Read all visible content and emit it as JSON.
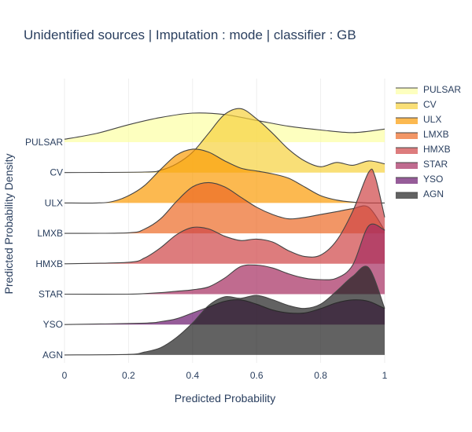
{
  "chart_data": {
    "type": "area",
    "subtype": "ridgeline",
    "title": "Unidentified sources | Imputation : mode | classifier : GB",
    "xlabel": "Predicted Probability",
    "ylabel": "Predicted Probability Density",
    "xlim": [
      0,
      1
    ],
    "x_ticks": [
      "0",
      "0.2",
      "0.4",
      "0.6",
      "0.8",
      "1"
    ],
    "grid": "vertical",
    "legend_position": "right",
    "series": [
      {
        "name": "PULSAR",
        "color": "#fcffa4",
        "x": [
          0,
          0.1,
          0.2,
          0.3,
          0.4,
          0.5,
          0.6,
          0.7,
          0.8,
          0.9,
          1.0
        ],
        "y": [
          0.1,
          0.3,
          0.6,
          0.85,
          1.0,
          0.95,
          0.75,
          0.55,
          0.42,
          0.33,
          0.45
        ]
      },
      {
        "name": "CV",
        "color": "#f7d13d",
        "x": [
          0,
          0.25,
          0.3,
          0.35,
          0.4,
          0.45,
          0.5,
          0.55,
          0.6,
          0.65,
          0.7,
          0.75,
          0.8,
          0.85,
          0.9,
          0.95,
          1.0
        ],
        "y": [
          0.0,
          0.02,
          0.08,
          0.3,
          0.7,
          1.35,
          2.0,
          2.2,
          1.85,
          1.35,
          0.8,
          0.4,
          0.2,
          0.35,
          0.25,
          0.4,
          0.3
        ]
      },
      {
        "name": "ULX",
        "color": "#fb9b06",
        "x": [
          0,
          0.1,
          0.15,
          0.2,
          0.25,
          0.3,
          0.35,
          0.4,
          0.45,
          0.5,
          0.55,
          0.6,
          0.65,
          0.7,
          0.75,
          0.8,
          0.85,
          0.9,
          0.95,
          1.0
        ],
        "y": [
          0.0,
          0.0,
          0.05,
          0.25,
          0.6,
          1.15,
          1.65,
          1.85,
          1.75,
          1.45,
          1.2,
          1.1,
          1.0,
          0.85,
          0.55,
          0.25,
          0.1,
          0.03,
          0.0,
          0.0
        ]
      },
      {
        "name": "LMXB",
        "color": "#ed6925",
        "x": [
          0,
          0.2,
          0.25,
          0.3,
          0.35,
          0.4,
          0.45,
          0.5,
          0.55,
          0.6,
          0.65,
          0.7,
          0.75,
          0.8,
          0.85,
          0.9,
          0.95,
          1.0
        ],
        "y": [
          0.0,
          0.02,
          0.15,
          0.5,
          1.1,
          1.6,
          1.75,
          1.6,
          1.25,
          0.9,
          0.65,
          0.5,
          0.55,
          0.65,
          0.75,
          0.85,
          0.9,
          0.1
        ]
      },
      {
        "name": "HMXB",
        "color": "#cf4446",
        "x": [
          0,
          0.2,
          0.25,
          0.3,
          0.35,
          0.4,
          0.45,
          0.5,
          0.55,
          0.6,
          0.65,
          0.7,
          0.75,
          0.8,
          0.85,
          0.9,
          0.95,
          0.97,
          1.0
        ],
        "y": [
          0.0,
          0.05,
          0.2,
          0.55,
          1.0,
          1.25,
          1.2,
          0.95,
          0.8,
          0.85,
          0.75,
          0.45,
          0.25,
          0.3,
          0.8,
          1.8,
          3.15,
          3.0,
          1.6
        ]
      },
      {
        "name": "STAR",
        "color": "#a52c60",
        "x": [
          0,
          0.2,
          0.25,
          0.3,
          0.35,
          0.4,
          0.45,
          0.5,
          0.55,
          0.6,
          0.65,
          0.7,
          0.75,
          0.8,
          0.85,
          0.9,
          0.95,
          1.0
        ],
        "y": [
          0.0,
          0.0,
          0.02,
          0.05,
          0.1,
          0.15,
          0.25,
          0.55,
          0.95,
          1.0,
          0.9,
          0.7,
          0.55,
          0.5,
          0.55,
          1.0,
          2.35,
          2.2
        ]
      },
      {
        "name": "YSO",
        "color": "#6a176e",
        "x": [
          0,
          0.25,
          0.3,
          0.35,
          0.4,
          0.45,
          0.5,
          0.55,
          0.6,
          0.65,
          0.7,
          0.75,
          0.8,
          0.85,
          0.9,
          0.95,
          1.0
        ],
        "y": [
          0.0,
          0.05,
          0.1,
          0.2,
          0.4,
          0.6,
          0.8,
          0.85,
          0.7,
          0.5,
          0.4,
          0.4,
          0.55,
          0.75,
          0.85,
          0.8,
          0.55
        ]
      },
      {
        "name": "AGN",
        "color": "#1f1f1f",
        "x": [
          0,
          0.2,
          0.25,
          0.3,
          0.35,
          0.4,
          0.45,
          0.5,
          0.55,
          0.6,
          0.65,
          0.7,
          0.75,
          0.8,
          0.85,
          0.9,
          0.95,
          1.0
        ],
        "y": [
          0.0,
          0.02,
          0.1,
          0.25,
          0.6,
          1.1,
          1.7,
          2.0,
          1.95,
          2.05,
          1.9,
          1.7,
          1.6,
          1.75,
          2.2,
          2.7,
          3.0,
          1.6
        ]
      }
    ]
  }
}
